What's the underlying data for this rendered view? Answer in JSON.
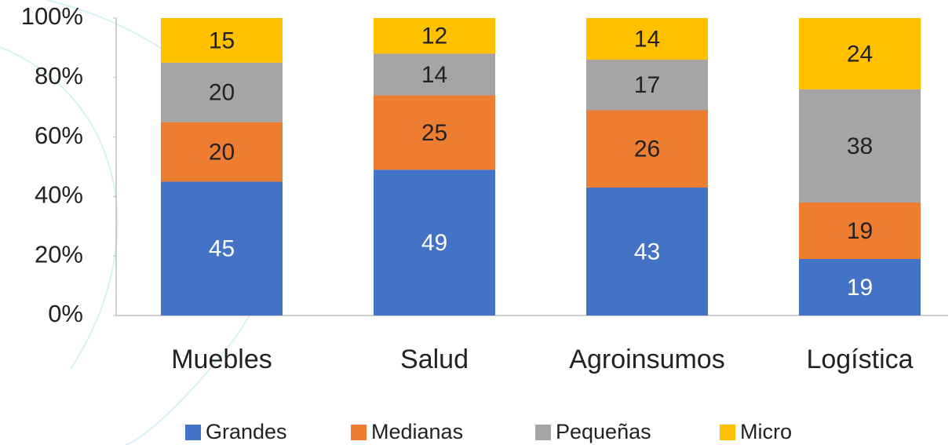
{
  "chart_data": {
    "type": "stacked_bar",
    "categories": [
      "Muebles",
      "Salud",
      "Agroinsumos",
      "Logística"
    ],
    "series": [
      {
        "name": "Grandes",
        "color": "#4472c4",
        "values": [
          45,
          49,
          43,
          19
        ]
      },
      {
        "name": "Medianas",
        "color": "#ed7d31",
        "values": [
          20,
          25,
          26,
          19
        ]
      },
      {
        "name": "Pequeñas",
        "color": "#a5a5a5",
        "values": [
          20,
          14,
          17,
          38
        ]
      },
      {
        "name": "Micro",
        "color": "#ffc000",
        "values": [
          15,
          12,
          14,
          24
        ]
      }
    ],
    "ylim": [
      0,
      100
    ],
    "yticks": [
      {
        "value": 0,
        "label": "0%"
      },
      {
        "value": 20,
        "label": "20%"
      },
      {
        "value": 40,
        "label": "40%"
      },
      {
        "value": 60,
        "label": "60%"
      },
      {
        "value": 80,
        "label": "80%"
      },
      {
        "value": 100,
        "label": "100%"
      }
    ],
    "legend": "bottom"
  }
}
